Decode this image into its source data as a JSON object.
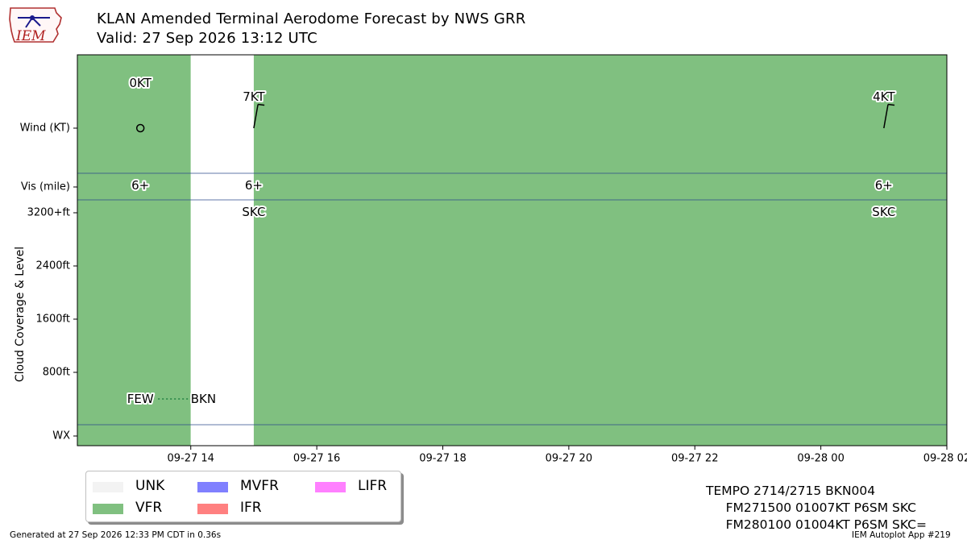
{
  "header": {
    "logo_text": "IEM",
    "title_line1": "KLAN Amended Terminal Aerodome Forecast by NWS GRR",
    "title_line2": "Valid: 27 Sep 2026 13:12 UTC"
  },
  "chart_data": {
    "type": "timeline",
    "x_axis": {
      "start": "2026-09-27 12:12",
      "end": "2026-09-28 02:00",
      "tick_labels": [
        "09-27 14",
        "09-27 16",
        "09-27 18",
        "09-27 20",
        "09-27 22",
        "09-28 00",
        "09-28 02"
      ],
      "tick_times": [
        "2026-09-27 14:00",
        "2026-09-27 16:00",
        "2026-09-27 18:00",
        "2026-09-27 20:00",
        "2026-09-27 22:00",
        "2026-09-28 00:00",
        "2026-09-28 02:00"
      ]
    },
    "y_axis": {
      "label": "Cloud Coverage & Level",
      "rows": [
        "Wind (KT)",
        "Vis (mile)",
        "3200+ft",
        "2400ft",
        "1600ft",
        "800ft",
        "WX"
      ],
      "cloud_ticks_ft": [
        3200,
        2400,
        1600,
        800
      ],
      "cloud_max_ft": 3200
    },
    "flight_category_bands": [
      {
        "start": "2026-09-27 12:12",
        "end": "2026-09-27 14:00",
        "category": "VFR"
      },
      {
        "start": "2026-09-27 14:00",
        "end": "2026-09-27 15:00",
        "category": "UNK"
      },
      {
        "start": "2026-09-27 15:00",
        "end": "2026-09-28 02:00",
        "category": "VFR"
      }
    ],
    "wind": [
      {
        "time": "2026-09-27 13:12",
        "label": "0KT",
        "speed_kt": 0,
        "direction_deg": 0
      },
      {
        "time": "2026-09-27 15:00",
        "label": "7KT",
        "speed_kt": 7,
        "direction_deg": 10
      },
      {
        "time": "2026-09-28 01:00",
        "label": "4KT",
        "speed_kt": 4,
        "direction_deg": 10
      }
    ],
    "visibility": [
      {
        "time": "2026-09-27 13:12",
        "label": "6+"
      },
      {
        "time": "2026-09-27 15:00",
        "label": "6+"
      },
      {
        "time": "2026-09-28 01:00",
        "label": "6+"
      }
    ],
    "sky": [
      {
        "time": "2026-09-27 15:00",
        "label": "SKC"
      },
      {
        "time": "2026-09-28 01:00",
        "label": "SKC"
      }
    ],
    "cloud_layers": [
      {
        "time": "2026-09-27 13:12",
        "label": "FEW",
        "level_ft": 400
      },
      {
        "time": "2026-09-27 14:12",
        "label": "BKN",
        "level_ft": 400
      }
    ],
    "legend": [
      {
        "label": "UNK",
        "color": "#f3f3f3"
      },
      {
        "label": "VFR",
        "color": "#80c080"
      },
      {
        "label": "MVFR",
        "color": "#8080ff"
      },
      {
        "label": "IFR",
        "color": "#ff8080"
      },
      {
        "label": "LIFR",
        "color": "#ff80ff"
      }
    ]
  },
  "colors": {
    "VFR": "#80c080",
    "UNK": "#ffffff",
    "separator": "#2b4a8b",
    "cloud_line": "#208040"
  },
  "taf_text": [
    "TEMPO 2714/2715 BKN004",
    "     FM271500 01007KT P6SM SKC",
    "     FM280100 01004KT P6SM SKC="
  ],
  "footer": {
    "generated": "Generated at 27 Sep 2026 12:33 PM CDT in 0.36s",
    "app": "IEM Autoplot App #219"
  }
}
